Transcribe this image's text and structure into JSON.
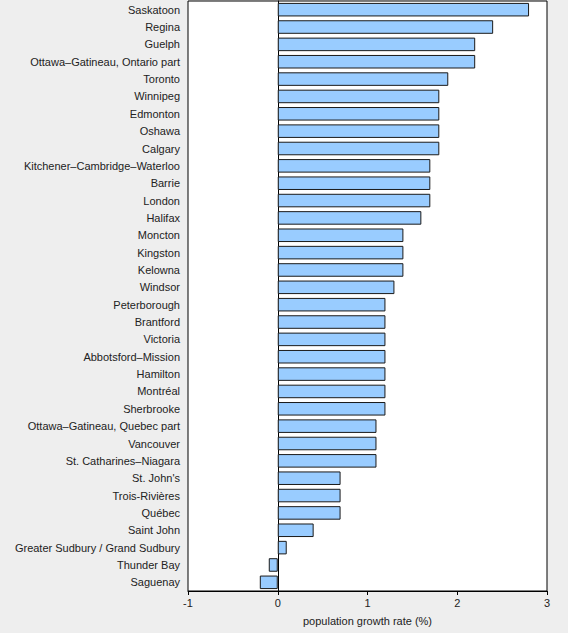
{
  "chart_data": {
    "type": "bar",
    "orientation": "horizontal",
    "x_label": "population growth rate (%)",
    "categories": [
      "Saskatoon",
      "Regina",
      "Guelph",
      "Ottawa–Gatineau, Ontario part",
      "Toronto",
      "Winnipeg",
      "Edmonton",
      "Oshawa",
      "Calgary",
      "Kitchener–Cambridge–Waterloo",
      "Barrie",
      "London",
      "Halifax",
      "Moncton",
      "Kingston",
      "Kelowna",
      "Windsor",
      "Peterborough",
      "Brantford",
      "Victoria",
      "Abbotsford–Mission",
      "Hamilton",
      "Montréal",
      "Sherbrooke",
      "Ottawa–Gatineau, Quebec part",
      "Vancouver",
      "St. Catharines–Niagara",
      "St. John's",
      "Trois-Rivières",
      "Québec",
      "Saint John",
      "Greater Sudbury / Grand Sudbury",
      "Thunder Bay",
      "Saguenay"
    ],
    "values": [
      2.8,
      2.4,
      2.2,
      2.2,
      1.9,
      1.8,
      1.8,
      1.8,
      1.8,
      1.7,
      1.7,
      1.7,
      1.6,
      1.4,
      1.4,
      1.4,
      1.3,
      1.2,
      1.2,
      1.2,
      1.2,
      1.2,
      1.2,
      1.2,
      1.1,
      1.1,
      1.1,
      0.7,
      0.7,
      0.7,
      0.4,
      0.1,
      -0.1,
      -0.2
    ],
    "color": "#99ccff",
    "xlim": [
      -1,
      3
    ],
    "xticks": [
      -1,
      0,
      1,
      2,
      3
    ],
    "grid": false
  }
}
